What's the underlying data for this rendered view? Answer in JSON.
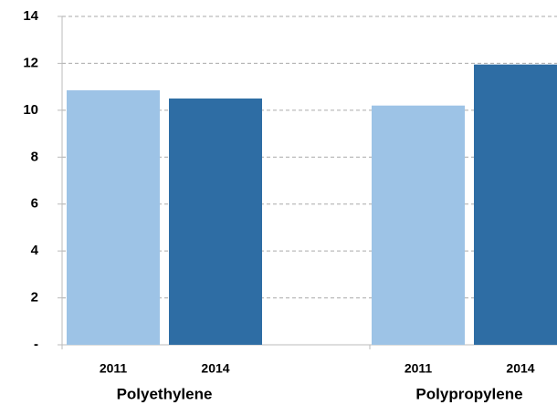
{
  "chart_data": {
    "type": "bar",
    "categories": [
      "Polyethylene",
      "Polypropylene"
    ],
    "series": [
      {
        "name": "2011",
        "color": "#9dc3e6",
        "values": [
          10.85,
          10.2
        ]
      },
      {
        "name": "2014",
        "color": "#2e6da4",
        "values": [
          10.5,
          11.95
        ]
      }
    ],
    "ylim": [
      0,
      14
    ],
    "yticks": [
      {
        "value": 0,
        "label": "-"
      },
      2,
      4,
      6,
      8,
      10,
      12,
      14
    ],
    "grid": true
  }
}
